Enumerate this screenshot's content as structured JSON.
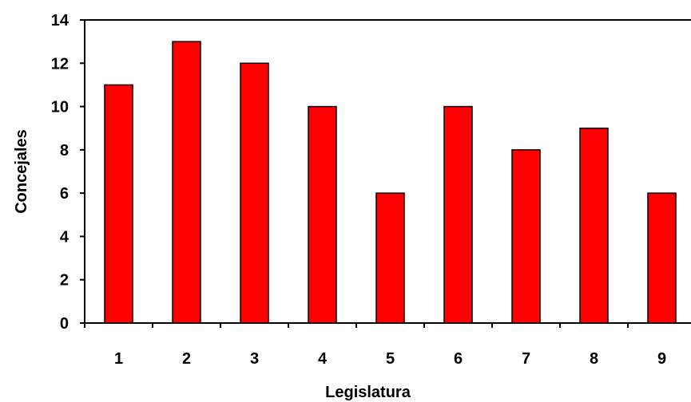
{
  "chart_data": {
    "type": "bar",
    "categories": [
      "1",
      "2",
      "3",
      "4",
      "5",
      "6",
      "7",
      "8",
      "9"
    ],
    "values": [
      11,
      13,
      12,
      10,
      6,
      10,
      8,
      9,
      6
    ],
    "title": "",
    "xlabel": "Legislatura",
    "ylabel": "Concejales",
    "ylim": [
      0,
      14
    ],
    "yticks": [
      "0",
      "2",
      "4",
      "6",
      "8",
      "10",
      "12",
      "14"
    ],
    "grid": false,
    "legend": "none",
    "colors": {
      "bar_fill": "#ff0000",
      "bar_stroke": "#000000",
      "axis": "#000000",
      "background": "#ffffff"
    }
  }
}
